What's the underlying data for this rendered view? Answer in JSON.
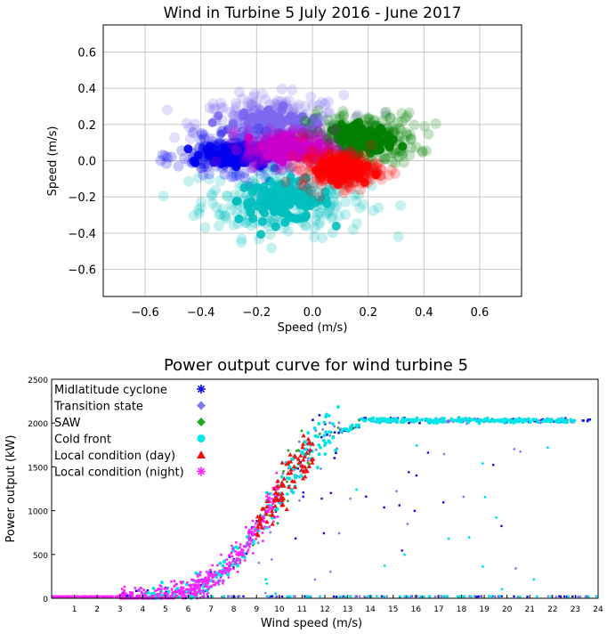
{
  "chart_data": [
    {
      "type": "scatter",
      "title": "Wind in Turbine 5 July 2016 - June 2017",
      "xlabel": "Speed (m/s)",
      "ylabel": "Speed (m/s)",
      "xlim": [
        -0.75,
        0.75
      ],
      "ylim": [
        -0.75,
        0.75
      ],
      "xticks": [
        -0.6,
        -0.4,
        -0.2,
        0.0,
        0.2,
        0.4,
        0.6
      ],
      "yticks": [
        -0.6,
        -0.4,
        -0.2,
        0.0,
        0.2,
        0.4,
        0.6
      ],
      "xtick_labels": [
        "−0.6",
        "−0.4",
        "−0.2",
        "0.0",
        "0.2",
        "0.4",
        "0.6"
      ],
      "ytick_labels": [
        "−0.6",
        "−0.4",
        "−0.2",
        "0.0",
        "0.2",
        "0.4",
        "0.6"
      ],
      "grid": true,
      "series": [
        {
          "color": "#7b68ee",
          "center": [
            -0.15,
            0.2
          ],
          "spread": [
            0.13,
            0.08
          ],
          "angle_range_deg": [
            95,
            175
          ]
        },
        {
          "color": "#0000ee",
          "center": [
            -0.28,
            0.03
          ],
          "spread": [
            0.1,
            0.05
          ],
          "angle_range_deg": [
            165,
            200
          ]
        },
        {
          "color": "#cc00cc",
          "center": [
            -0.08,
            0.07
          ],
          "spread": [
            0.08,
            0.05
          ],
          "angle_range_deg": [
            95,
            165
          ]
        },
        {
          "color": "#008000",
          "center": [
            0.18,
            0.12
          ],
          "spread": [
            0.1,
            0.07
          ],
          "angle_range_deg": [
            0,
            90
          ]
        },
        {
          "color": "#ff0000",
          "center": [
            0.1,
            -0.05
          ],
          "spread": [
            0.07,
            0.05
          ],
          "angle_range_deg": [
            300,
            360
          ]
        },
        {
          "color": "#00bfbf",
          "center": [
            -0.1,
            -0.22
          ],
          "spread": [
            0.15,
            0.1
          ],
          "angle_range_deg": [
            190,
            330
          ]
        }
      ]
    },
    {
      "type": "scatter",
      "title": "Power output curve for wind turbine 5",
      "xlabel": "Wind speed (m/s)",
      "ylabel": "Power output (kW)",
      "xlim": [
        0,
        24
      ],
      "ylim": [
        0,
        2500
      ],
      "xticks": [
        1,
        2,
        3,
        4,
        5,
        6,
        7,
        8,
        9,
        10,
        11,
        12,
        13,
        14,
        15,
        16,
        17,
        18,
        19,
        20,
        21,
        22,
        23,
        24
      ],
      "yticks": [
        0,
        500,
        1000,
        1500,
        2000,
        2500
      ],
      "grid": false,
      "curve": {
        "cut_in": 3,
        "rated_speed": 13.5,
        "rated_power": 2030
      },
      "legend_position": "top-left",
      "series": [
        {
          "name": "Midlatitude cyclone",
          "color": "#1010ee",
          "marker": "asterisk",
          "wind_range": [
            3,
            24
          ]
        },
        {
          "name": "Transition state",
          "color": "#7b7bee",
          "marker": "diamond",
          "wind_range": [
            3,
            23
          ]
        },
        {
          "name": "SAW",
          "color": "#22aa22",
          "marker": "diamond",
          "wind_range": [
            8,
            14
          ]
        },
        {
          "name": "Cold front",
          "color": "#00e5e5",
          "marker": "circle",
          "wind_range": [
            4,
            23
          ]
        },
        {
          "name": "Local condition (day)",
          "color": "#ee1111",
          "marker": "triangle",
          "wind_range": [
            9,
            11.5
          ]
        },
        {
          "name": "Local condition (night)",
          "color": "#ff22ff",
          "marker": "asterisk",
          "wind_range": [
            3,
            10
          ]
        }
      ]
    }
  ]
}
